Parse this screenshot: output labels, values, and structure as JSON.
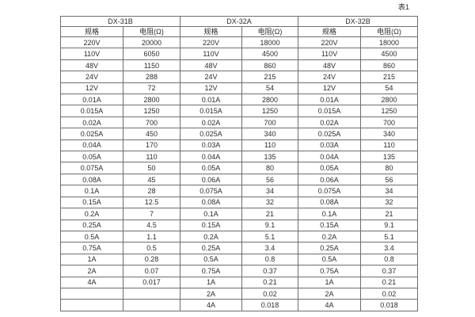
{
  "page": {
    "table_label": "表1"
  },
  "colors": {
    "background": "#ffffff",
    "border": "#6e6e6e",
    "text": "#2d2d2d"
  },
  "table": {
    "groups": [
      {
        "name": "DX-31B",
        "spec_header": "规格",
        "res_header": "电阻(Ω)"
      },
      {
        "name": "DX-32A",
        "spec_header": "规格",
        "res_header": "电阻(Ω)"
      },
      {
        "name": "DX-32B",
        "spec_header": "规格",
        "res_header": "电阻(Ω)"
      }
    ],
    "rows": [
      [
        "220V",
        "20000",
        "220V",
        "18000",
        "220V",
        "18000"
      ],
      [
        "110V",
        "6050",
        "110V",
        "4500",
        "110V",
        "4500"
      ],
      [
        "48V",
        "1150",
        "48V",
        "860",
        "48V",
        "860"
      ],
      [
        "24V",
        "288",
        "24V",
        "215",
        "24V",
        "215"
      ],
      [
        "12V",
        "72",
        "12V",
        "54",
        "12V",
        "54"
      ],
      [
        "0.01A",
        "2800",
        "0.01A",
        "2800",
        "0.01A",
        "2800"
      ],
      [
        "0.015A",
        "1250",
        "0.015A",
        "1250",
        "0.015A",
        "1250"
      ],
      [
        "0.02A",
        "700",
        "0.02A",
        "700",
        "0.02A",
        "700"
      ],
      [
        "0.025A",
        "450",
        "0.025A",
        "340",
        "0.025A",
        "340"
      ],
      [
        "0.04A",
        "170",
        "0.03A",
        "110",
        "0.03A",
        "110"
      ],
      [
        "0.05A",
        "110",
        "0.04A",
        "135",
        "0.04A",
        "135"
      ],
      [
        "0.075A",
        "50",
        "0.05A",
        "80",
        "0.05A",
        "80"
      ],
      [
        "0.08A",
        "45",
        "0.06A",
        "56",
        "0.06A",
        "56"
      ],
      [
        "0.1A",
        "28",
        "0.075A",
        "34",
        "0.075A",
        "34"
      ],
      [
        "0.15A",
        "12.5",
        "0.08A",
        "32",
        "0.08A",
        "32"
      ],
      [
        "0.2A",
        "7",
        "0.1A",
        "21",
        "0.1A",
        "21"
      ],
      [
        "0.25A",
        "4.5",
        "0.15A",
        "9.1",
        "0.15A",
        "9.1"
      ],
      [
        "0.5A",
        "1.1",
        "0.2A",
        "5.1",
        "0.2A",
        "5.1"
      ],
      [
        "0.75A",
        "0.5",
        "0.25A",
        "3.4",
        "0.25A",
        "3.4"
      ],
      [
        "1A",
        "0.28",
        "0.5A",
        "0.8",
        "0.5A",
        "0.8"
      ],
      [
        "2A",
        "0.07",
        "0.75A",
        "0.37",
        "0.75A",
        "0.37"
      ],
      [
        "4A",
        "0.017",
        "1A",
        "0.21",
        "1A",
        "0.21"
      ],
      [
        "",
        "",
        "2A",
        "0.02",
        "2A",
        "0.02"
      ],
      [
        "",
        "",
        "4A",
        "0.018",
        "4A",
        "0.018"
      ]
    ]
  }
}
